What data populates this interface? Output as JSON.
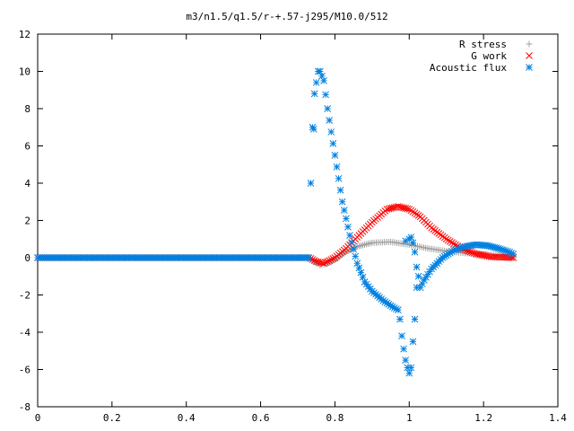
{
  "chart_data": {
    "type": "scatter",
    "title": "m3/n1.5/q1.5/r-+.57-j295/M10.0/512",
    "xlabel": "",
    "ylabel": "",
    "xlim": [
      0,
      1.4
    ],
    "ylim": [
      -8,
      12
    ],
    "x_ticks": [
      0,
      0.2,
      0.4,
      0.6,
      0.8,
      1,
      1.2,
      1.4
    ],
    "x_tick_labels": [
      "0",
      "0.2",
      "0.4",
      "0.6",
      "0.8",
      "1",
      "1.2",
      "1.4"
    ],
    "y_ticks": [
      -8,
      -6,
      -4,
      -2,
      0,
      2,
      4,
      6,
      8,
      10,
      12
    ],
    "y_tick_labels": [
      "-8",
      "-6",
      "-4",
      "-2",
      "0",
      "2",
      "4",
      "6",
      "8",
      "10",
      "12"
    ],
    "grid": false,
    "legend_position": "top-right",
    "series": [
      {
        "name": "R stress",
        "marker": "plus",
        "color": "#a0a0a0",
        "points": [
          [
            0.0,
            0.0
          ],
          [
            0.1,
            0.0
          ],
          [
            0.2,
            0.0
          ],
          [
            0.3,
            0.0
          ],
          [
            0.4,
            0.0
          ],
          [
            0.5,
            0.0
          ],
          [
            0.6,
            0.0
          ],
          [
            0.7,
            0.0
          ],
          [
            0.73,
            0.0
          ],
          [
            0.75,
            -0.3
          ],
          [
            0.76,
            -0.4
          ],
          [
            0.78,
            -0.3
          ],
          [
            0.8,
            -0.1
          ],
          [
            0.83,
            0.3
          ],
          [
            0.86,
            0.6
          ],
          [
            0.9,
            0.8
          ],
          [
            0.95,
            0.85
          ],
          [
            1.0,
            0.7
          ],
          [
            1.05,
            0.5
          ],
          [
            1.1,
            0.35
          ],
          [
            1.15,
            0.25
          ],
          [
            1.2,
            0.18
          ],
          [
            1.25,
            0.1
          ],
          [
            1.28,
            0.0
          ]
        ]
      },
      {
        "name": "G work",
        "marker": "cross",
        "color": "#ff0000",
        "points": [
          [
            0.0,
            0.0
          ],
          [
            0.1,
            0.0
          ],
          [
            0.2,
            0.0
          ],
          [
            0.3,
            0.0
          ],
          [
            0.4,
            0.0
          ],
          [
            0.5,
            0.0
          ],
          [
            0.6,
            0.0
          ],
          [
            0.7,
            0.0
          ],
          [
            0.73,
            0.0
          ],
          [
            0.75,
            -0.2
          ],
          [
            0.77,
            -0.3
          ],
          [
            0.8,
            0.0
          ],
          [
            0.83,
            0.5
          ],
          [
            0.86,
            1.1
          ],
          [
            0.9,
            1.9
          ],
          [
            0.94,
            2.6
          ],
          [
            0.97,
            2.75
          ],
          [
            1.0,
            2.6
          ],
          [
            1.03,
            2.2
          ],
          [
            1.06,
            1.6
          ],
          [
            1.1,
            1.0
          ],
          [
            1.14,
            0.5
          ],
          [
            1.18,
            0.2
          ],
          [
            1.22,
            0.05
          ],
          [
            1.28,
            0.0
          ]
        ]
      },
      {
        "name": "Acoustic flux",
        "marker": "star",
        "color": "#0080e0",
        "points": [
          [
            0.0,
            0.0
          ],
          [
            0.1,
            0.0
          ],
          [
            0.2,
            0.0
          ],
          [
            0.3,
            0.0
          ],
          [
            0.4,
            0.0
          ],
          [
            0.5,
            0.0
          ],
          [
            0.6,
            0.0
          ],
          [
            0.7,
            0.0
          ],
          [
            0.73,
            0.0
          ],
          [
            0.735,
            4.0
          ],
          [
            0.74,
            7.0
          ],
          [
            0.743,
            6.9
          ],
          [
            0.745,
            8.8
          ],
          [
            0.75,
            9.4
          ],
          [
            0.755,
            10.0
          ],
          [
            0.76,
            10.0
          ],
          [
            0.77,
            9.5
          ],
          [
            0.78,
            8.0
          ],
          [
            0.8,
            5.5
          ],
          [
            0.82,
            3.0
          ],
          [
            0.84,
            1.2
          ],
          [
            0.86,
            -0.3
          ],
          [
            0.88,
            -1.3
          ],
          [
            0.9,
            -1.8
          ],
          [
            0.93,
            -2.3
          ],
          [
            0.96,
            -2.7
          ],
          [
            0.97,
            -2.8
          ],
          [
            0.975,
            -3.3
          ],
          [
            0.98,
            -4.2
          ],
          [
            0.985,
            -4.9
          ],
          [
            0.99,
            -5.5
          ],
          [
            0.995,
            -5.9
          ],
          [
            1.0,
            -6.2
          ],
          [
            1.005,
            -5.9
          ],
          [
            1.01,
            -4.5
          ],
          [
            1.015,
            -3.3
          ],
          [
            1.02,
            -1.6
          ],
          [
            1.03,
            -1.6
          ],
          [
            1.04,
            -1.2
          ],
          [
            1.06,
            -0.6
          ],
          [
            1.09,
            0.0
          ],
          [
            1.12,
            0.4
          ],
          [
            1.15,
            0.6
          ],
          [
            1.18,
            0.7
          ],
          [
            1.21,
            0.65
          ],
          [
            1.24,
            0.5
          ],
          [
            1.27,
            0.3
          ],
          [
            1.28,
            0.2
          ],
          [
            0.99,
            0.9
          ],
          [
            1.0,
            1.0
          ],
          [
            1.005,
            1.1
          ],
          [
            1.01,
            0.8
          ],
          [
            1.015,
            0.3
          ],
          [
            1.02,
            -0.5
          ],
          [
            1.025,
            -1.0
          ]
        ]
      }
    ]
  }
}
